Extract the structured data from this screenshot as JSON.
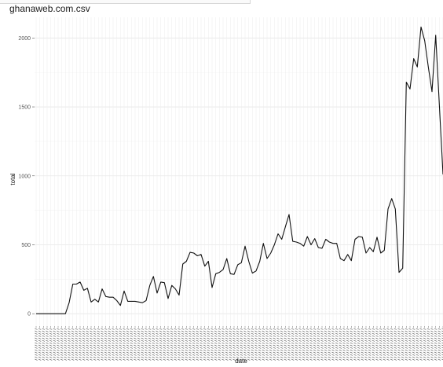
{
  "chart_data": {
    "type": "line",
    "title": "ghanaweb.com.csv",
    "xlabel": "date",
    "ylabel": "total",
    "ylim": [
      -90,
      2150
    ],
    "y_ticks": [
      0,
      500,
      1000,
      1500,
      2000
    ],
    "y_tick_labels": [
      "0",
      "500",
      "1000",
      "1500",
      "2000"
    ],
    "grid": true,
    "x_labels_legible": false,
    "series": [
      {
        "values": [
          0,
          0,
          0,
          0,
          0,
          0,
          0,
          0,
          0,
          80,
          215,
          215,
          230,
          170,
          185,
          85,
          105,
          85,
          180,
          125,
          120,
          120,
          95,
          60,
          165,
          90,
          90,
          90,
          85,
          80,
          95,
          205,
          270,
          150,
          230,
          225,
          110,
          205,
          180,
          135,
          360,
          380,
          445,
          440,
          420,
          430,
          345,
          380,
          190,
          290,
          300,
          320,
          400,
          290,
          285,
          355,
          370,
          490,
          380,
          295,
          310,
          380,
          510,
          400,
          440,
          500,
          580,
          540,
          630,
          720,
          525,
          520,
          510,
          490,
          560,
          500,
          545,
          480,
          475,
          540,
          520,
          510,
          510,
          400,
          385,
          430,
          385,
          540,
          560,
          555,
          440,
          480,
          450,
          555,
          440,
          460,
          760,
          835,
          760,
          300,
          330,
          1680,
          1630,
          1850,
          1790,
          2080,
          1980,
          1790,
          1610,
          2020,
          1520,
          1010
        ]
      }
    ],
    "colors": {
      "line": "#111111",
      "panel_bg": "#ffffff",
      "grid": "#ebebeb"
    }
  }
}
